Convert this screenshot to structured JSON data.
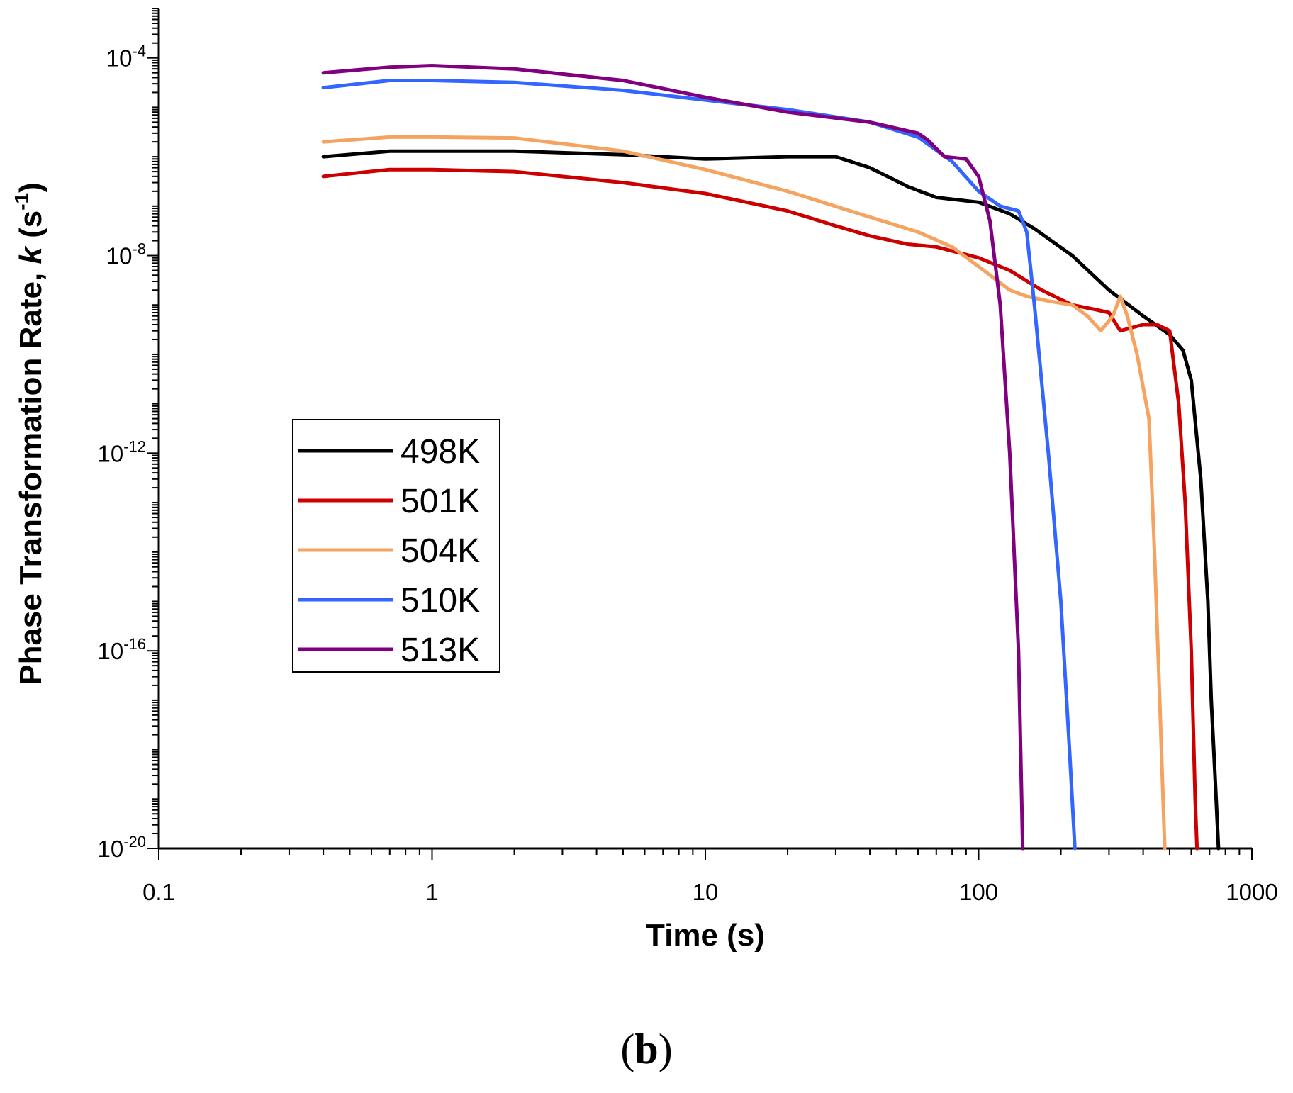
{
  "chart_data": {
    "type": "line",
    "xscale": "log",
    "yscale": "log",
    "xlim": [
      0.1,
      1000
    ],
    "ylim": [
      1e-20,
      0.001
    ],
    "xlabel": "Time (s)",
    "ylabel_parts": [
      "Phase Transformation Rate, ",
      "k",
      " (s",
      "-1",
      ")"
    ],
    "x_ticks": [
      {
        "value": 0.1,
        "label": "0.1"
      },
      {
        "value": 1,
        "label": "1"
      },
      {
        "value": 10,
        "label": "10"
      },
      {
        "value": 100,
        "label": "100"
      },
      {
        "value": 1000,
        "label": "1000"
      }
    ],
    "y_ticks": [
      {
        "value": 0.0001,
        "base": "10",
        "exp": "-4"
      },
      {
        "value": 1e-08,
        "base": "10",
        "exp": "-8"
      },
      {
        "value": 1e-12,
        "base": "10",
        "exp": "-12"
      },
      {
        "value": 1e-16,
        "base": "10",
        "exp": "-16"
      },
      {
        "value": 1e-20,
        "base": "10",
        "exp": "-20"
      }
    ],
    "panel_label": {
      "open": "(",
      "letter": "b",
      "close": ")"
    },
    "legend_position": "center-left",
    "series": [
      {
        "name": "498K",
        "color": "#000000",
        "x": [
          0.4,
          0.7,
          1,
          2,
          5,
          10,
          20,
          30,
          40,
          55,
          70,
          100,
          130,
          160,
          220,
          300,
          400,
          500,
          560,
          600,
          650,
          690,
          710,
          725,
          740,
          755
        ],
        "y": [
          1e-06,
          1.3e-06,
          1.3e-06,
          1.3e-06,
          1.1e-06,
          9e-07,
          1e-06,
          1e-06,
          6e-07,
          2.5e-07,
          1.5e-07,
          1.2e-07,
          7e-08,
          3.5e-08,
          1e-08,
          2e-09,
          6e-10,
          2.5e-10,
          1.2e-10,
          3e-11,
          3e-13,
          1e-15,
          1e-17,
          1e-18,
          1e-19,
          1e-20
        ]
      },
      {
        "name": "501K",
        "color": "#cc0000",
        "x": [
          0.4,
          0.7,
          1,
          2,
          5,
          10,
          20,
          30,
          40,
          55,
          70,
          100,
          130,
          170,
          220,
          270,
          300,
          330,
          400,
          450,
          500,
          540,
          570,
          600,
          620,
          630
        ],
        "y": [
          4e-07,
          5.5e-07,
          5.5e-07,
          5e-07,
          3e-07,
          1.8e-07,
          8e-08,
          4e-08,
          2.5e-08,
          1.7e-08,
          1.5e-08,
          9e-09,
          5e-09,
          2e-09,
          1e-09,
          8e-10,
          7e-10,
          3e-10,
          4e-10,
          4e-10,
          3e-10,
          1e-11,
          1e-13,
          1e-16,
          1e-19,
          1e-20
        ]
      },
      {
        "name": "504K",
        "color": "#f4a460",
        "x": [
          0.4,
          0.7,
          1,
          2,
          5,
          10,
          20,
          40,
          60,
          80,
          100,
          130,
          150,
          180,
          220,
          250,
          280,
          310,
          330,
          350,
          380,
          420,
          440,
          460,
          480
        ],
        "y": [
          2e-06,
          2.5e-06,
          2.5e-06,
          2.4e-06,
          1.3e-06,
          5.5e-07,
          2e-07,
          6e-08,
          3e-08,
          1.5e-08,
          6e-09,
          2e-09,
          1.5e-09,
          1.2e-09,
          1e-09,
          6e-10,
          3e-10,
          6e-10,
          1.5e-09,
          6e-10,
          1e-10,
          5e-12,
          1e-14,
          1e-17,
          1e-20
        ]
      },
      {
        "name": "510K",
        "color": "#3366ff",
        "x": [
          0.4,
          0.7,
          1,
          2,
          5,
          10,
          20,
          40,
          60,
          80,
          100,
          120,
          140,
          150,
          160,
          180,
          200,
          215,
          225
        ],
        "y": [
          2.5e-05,
          3.5e-05,
          3.5e-05,
          3.2e-05,
          2.2e-05,
          1.4e-05,
          9e-06,
          5e-06,
          2.5e-06,
          8e-07,
          2e-07,
          1e-07,
          8e-08,
          3e-08,
          1e-09,
          1e-12,
          1e-15,
          1e-18,
          1e-20
        ]
      },
      {
        "name": "513K",
        "color": "#800080",
        "x": [
          0.4,
          0.7,
          1,
          2,
          5,
          10,
          20,
          40,
          60,
          65,
          75,
          90,
          100,
          110,
          120,
          130,
          140,
          145
        ],
        "y": [
          5e-05,
          6.5e-05,
          7e-05,
          6e-05,
          3.5e-05,
          1.6e-05,
          8e-06,
          5e-06,
          3e-06,
          2.2e-06,
          1e-06,
          9e-07,
          4e-07,
          5e-08,
          1e-09,
          1e-12,
          1e-16,
          1e-20
        ]
      }
    ]
  }
}
